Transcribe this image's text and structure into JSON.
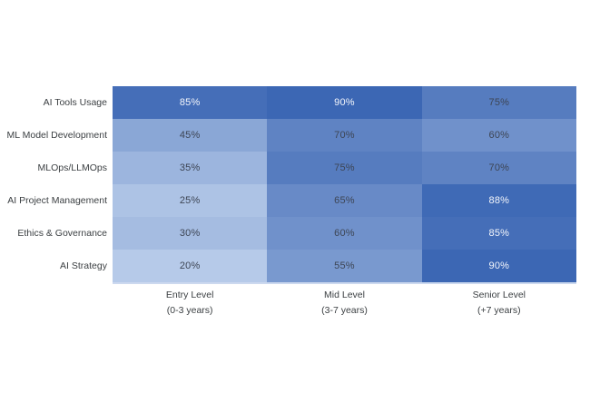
{
  "chart_data": {
    "type": "heatmap",
    "title": "",
    "rows": [
      "AI Tools Usage",
      "ML Model Development",
      "MLOps/LLMOps",
      "AI Project Management",
      "Ethics & Governance",
      "AI Strategy"
    ],
    "columns": [
      {
        "label": "Entry Level",
        "sublabel": "(0-3 years)"
      },
      {
        "label": "Mid Level",
        "sublabel": "(3-7 years)"
      },
      {
        "label": "Senior Level",
        "sublabel": "(+7 years)"
      }
    ],
    "values": [
      [
        85,
        90,
        75
      ],
      [
        45,
        70,
        60
      ],
      [
        35,
        75,
        70
      ],
      [
        25,
        65,
        88
      ],
      [
        30,
        60,
        85
      ],
      [
        20,
        55,
        90
      ]
    ],
    "value_suffix": "%",
    "colormap": {
      "min_value": 20,
      "max_value": 90,
      "min_color": "#b6cae9",
      "max_color": "#3c67b4"
    },
    "text_colors": {
      "dark": "#3d4554",
      "light": "#f4f6fb",
      "light_text_threshold": 85
    },
    "axis_label_color": "#3c4043",
    "grid_bottom_border_color": "#ccd9ef",
    "legend": "none",
    "gridlines": false
  }
}
